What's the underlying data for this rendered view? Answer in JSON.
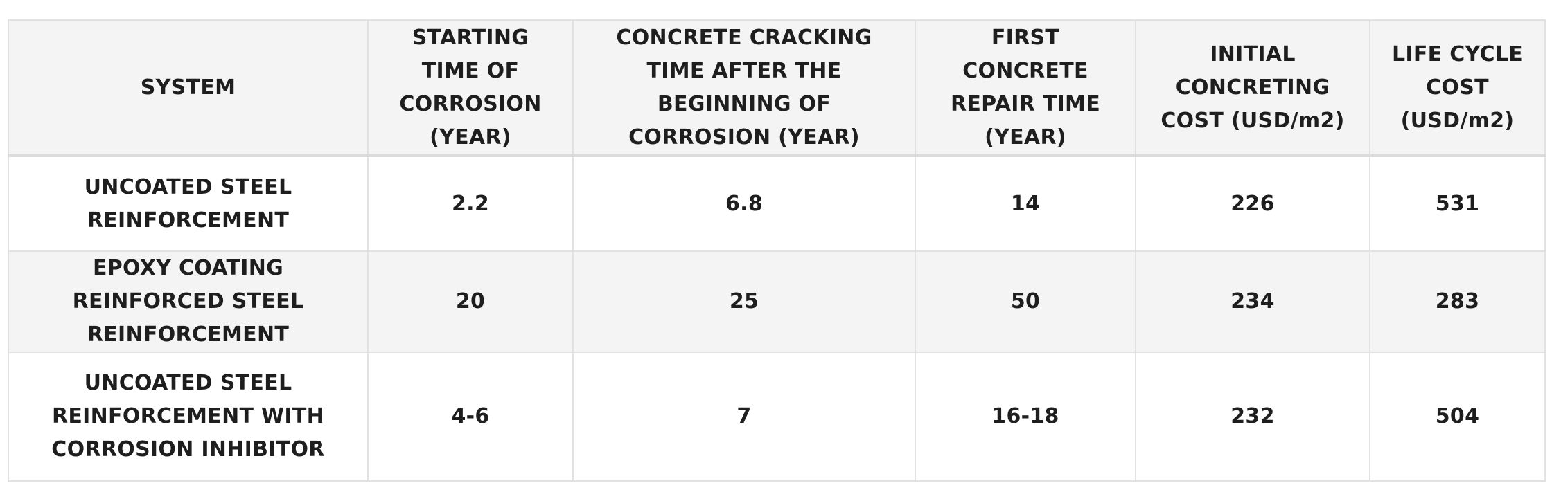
{
  "table": {
    "headers": [
      "SYSTEM",
      "STARTING TIME OF CORROSION (YEAR)",
      "CONCRETE CRACKING TIME AFTER THE BEGINNING OF CORROSION (YEAR)",
      "FIRST CONCRETE REPAIR TIME (YEAR)",
      "INITIAL CONCRETING COST (USD/m2)",
      "LIFE CYCLE COST (USD/m2)"
    ],
    "rows": [
      [
        "UNCOATED STEEL REINFORCEMENT",
        "2.2",
        "6.8",
        "14",
        "226",
        "531"
      ],
      [
        "EPOXY COATING REINFORCED STEEL REINFORCEMENT",
        "20",
        "25",
        "50",
        "234",
        "283"
      ],
      [
        "UNCOATED STEEL REINFORCEMENT WITH CORROSION INHIBITOR",
        "4-6",
        "7",
        "16-18",
        "232",
        "504"
      ]
    ]
  },
  "colors": {
    "header_bg": "#f4f4f4",
    "stripe_bg": "#f4f4f4",
    "border": "#e2e2e2",
    "text": "#1e1e1e"
  }
}
